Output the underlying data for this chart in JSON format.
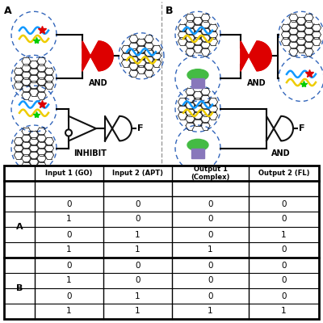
{
  "bg_color": "#ffffff",
  "dashed_circle_color": "#3366bb",
  "gate_red": "#dd0000",
  "gate_black": "#111111",
  "wire_color": "#000000",
  "table_data_A": [
    [
      "0",
      "0",
      "0",
      "0"
    ],
    [
      "1",
      "0",
      "0",
      "0"
    ],
    [
      "0",
      "1",
      "0",
      "1"
    ],
    [
      "1",
      "1",
      "1",
      "0"
    ]
  ],
  "table_data_B": [
    [
      "0",
      "0",
      "0",
      "0"
    ],
    [
      "1",
      "0",
      "0",
      "0"
    ],
    [
      "0",
      "1",
      "0",
      "0"
    ],
    [
      "1",
      "1",
      "1",
      "1"
    ]
  ],
  "header_labels": [
    "",
    "Input 1 (GO)",
    "Input 2 (APT)",
    "Output 1\n(Complex)",
    "Output 2 (FL)"
  ],
  "section_A": "A",
  "section_B": "B",
  "label_A": "A",
  "label_B": "B",
  "and_label": "AND",
  "inhibit_label": "INHIBIT",
  "F_label": "F",
  "wavy_colors": [
    "#1199ff",
    "#eecc00"
  ],
  "star_red": "#dd0000",
  "star_green": "#00cc00",
  "graphene_color": "#111111",
  "pill_green": "#44bb44",
  "pill_purple": "#8877bb",
  "divider_color": "#999999"
}
